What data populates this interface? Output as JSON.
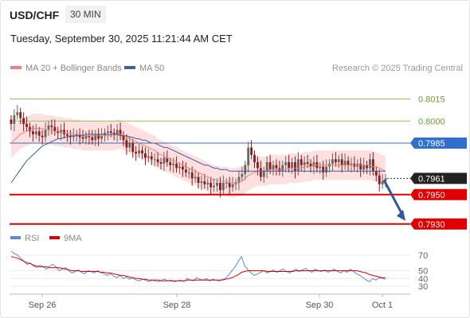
{
  "header": {
    "symbol": "USD/CHF",
    "timeframe": "30 MIN",
    "datetime": "Tuesday, September 30, 2025 11:21:44 AM CET"
  },
  "legend": {
    "ma20_label": "MA 20 + Bollinger Bands",
    "ma50_label": "MA 50",
    "credit": "Research © 2025 Trading Central",
    "rsi_label": "RSI",
    "ma9_label": "9MA"
  },
  "colors": {
    "ma20": "#f08080",
    "ma50": "#3f5f9f",
    "bollinger_fill": "#fde0df",
    "candle_up": "#666666",
    "candle_down": "#8b1a1a",
    "support": "#e00000",
    "resistance_green": "#8fc45a",
    "pivot_blue": "#2f6fd0",
    "current": "#222222",
    "arrow": "#2f5a96",
    "rsi": "#5b8bd6",
    "rsi_ma": "#e00000"
  },
  "chart_data": [
    {
      "type": "candlestick",
      "title": "USD/CHF",
      "timeframe": "30 MIN",
      "x_ticks": [
        "Sep 26",
        "Sep 28",
        "Sep 30",
        "Oct 1"
      ],
      "ylim": [
        0.7925,
        0.8025
      ],
      "price_levels": [
        {
          "value": 0.8015,
          "label": "0.8015",
          "style": "resistance"
        },
        {
          "value": 0.8,
          "label": "0.8000",
          "style": "resistance"
        },
        {
          "value": 0.7985,
          "label": "0.7985",
          "style": "pivot"
        },
        {
          "value": 0.7961,
          "label": "0.7961",
          "style": "current"
        },
        {
          "value": 0.795,
          "label": "0.7950",
          "style": "support"
        },
        {
          "value": 0.793,
          "label": "0.7930",
          "style": "support"
        }
      ],
      "close": [
        0.7998,
        0.8004,
        0.8006,
        0.8002,
        0.7998,
        0.7996,
        0.7993,
        0.7991,
        0.7993,
        0.799,
        0.7989,
        0.7994,
        0.7997,
        0.7996,
        0.7993,
        0.7992,
        0.7994,
        0.7991,
        0.799,
        0.7989,
        0.799,
        0.7991,
        0.7989,
        0.7988,
        0.799,
        0.7989,
        0.7987,
        0.7991,
        0.7988,
        0.799,
        0.7992,
        0.7993,
        0.7992,
        0.7991,
        0.7994,
        0.799,
        0.7987,
        0.7982,
        0.7985,
        0.7979,
        0.7978,
        0.798,
        0.7978,
        0.7975,
        0.7976,
        0.7974,
        0.7974,
        0.7972,
        0.7971,
        0.7975,
        0.7972,
        0.797,
        0.7971,
        0.7968,
        0.7969,
        0.7967,
        0.7965,
        0.7965,
        0.7961,
        0.7962,
        0.7958,
        0.7959,
        0.7957,
        0.7958,
        0.7955,
        0.7956,
        0.7958,
        0.7953,
        0.7958,
        0.7958,
        0.7955,
        0.7957,
        0.7958,
        0.7962,
        0.7964,
        0.797,
        0.7982,
        0.7977,
        0.7972,
        0.7968,
        0.7962,
        0.7966,
        0.7972,
        0.7967,
        0.797,
        0.7968,
        0.7966,
        0.797,
        0.7972,
        0.7968,
        0.7972,
        0.7966,
        0.7974,
        0.797,
        0.7972,
        0.7971,
        0.7969,
        0.7972,
        0.7968,
        0.7969,
        0.7965,
        0.7969,
        0.7971,
        0.7974,
        0.7972,
        0.7974,
        0.797,
        0.7973,
        0.797,
        0.7971,
        0.7969,
        0.7971,
        0.7967,
        0.797,
        0.7968,
        0.7974,
        0.7966,
        0.7963,
        0.7957,
        0.7959,
        0.7961
      ],
      "series": [
        {
          "name": "MA 20 + Bollinger Bands",
          "values": [
            0.7985,
            0.7987,
            0.7989,
            0.7991,
            0.7992,
            0.7993,
            0.7994,
            0.7995,
            0.7995,
            0.7995,
            0.7995,
            0.7994,
            0.7994,
            0.7994,
            0.7993,
            0.7993,
            0.7993,
            0.7992,
            0.7992,
            0.7992,
            0.7991,
            0.7991,
            0.7991,
            0.799,
            0.799,
            0.799,
            0.799,
            0.799,
            0.799,
            0.799,
            0.799,
            0.799,
            0.799,
            0.799,
            0.7991,
            0.7991,
            0.799,
            0.7989,
            0.7988,
            0.7987,
            0.7986,
            0.7985,
            0.7984,
            0.7983,
            0.7982,
            0.7981,
            0.798,
            0.7978,
            0.7977,
            0.7976,
            0.7975,
            0.7974,
            0.7973,
            0.7972,
            0.7971,
            0.797,
            0.7969,
            0.7968,
            0.7967,
            0.7966,
            0.7965,
            0.7964,
            0.7963,
            0.7962,
            0.7961,
            0.796,
            0.796,
            0.7959,
            0.7959,
            0.7959,
            0.7958,
            0.7958,
            0.7958,
            0.7959,
            0.7959,
            0.7961,
            0.7963,
            0.7964,
            0.7965,
            0.7966,
            0.7966,
            0.7966,
            0.7966,
            0.7967,
            0.7967,
            0.7967,
            0.7967,
            0.7967,
            0.7967,
            0.7968,
            0.7968,
            0.7968,
            0.7968,
            0.7968,
            0.7969,
            0.7969,
            0.7969,
            0.797,
            0.797,
            0.797,
            0.797,
            0.797,
            0.797,
            0.797,
            0.797,
            0.797,
            0.797,
            0.797,
            0.797,
            0.797,
            0.797,
            0.797,
            0.797,
            0.797,
            0.797,
            0.797,
            0.7969,
            0.7969,
            0.7968,
            0.7967,
            0.7966
          ]
        },
        {
          "name": "MA 50",
          "values": [
            0.7958,
            0.7961,
            0.7964,
            0.7967,
            0.797,
            0.7973,
            0.7975,
            0.7977,
            0.7979,
            0.7981,
            0.7983,
            0.7984,
            0.7985,
            0.7986,
            0.7987,
            0.7988,
            0.7988,
            0.7989,
            0.7989,
            0.799,
            0.799,
            0.799,
            0.799,
            0.799,
            0.7991,
            0.7991,
            0.7991,
            0.7991,
            0.7991,
            0.7991,
            0.7991,
            0.7991,
            0.7991,
            0.7991,
            0.7991,
            0.799,
            0.799,
            0.799,
            0.7989,
            0.7989,
            0.7988,
            0.7988,
            0.7987,
            0.7987,
            0.7986,
            0.7985,
            0.7985,
            0.7984,
            0.7983,
            0.7982,
            0.7982,
            0.7981,
            0.798,
            0.7979,
            0.7978,
            0.7977,
            0.7976,
            0.7975,
            0.7974,
            0.7973,
            0.7972,
            0.7971,
            0.797,
            0.797,
            0.7969,
            0.7968,
            0.7968,
            0.7967,
            0.7967,
            0.7967,
            0.7966,
            0.7966,
            0.7966,
            0.7966,
            0.7966,
            0.7966,
            0.7966,
            0.7966,
            0.7966,
            0.7966,
            0.7966,
            0.7966,
            0.7966,
            0.7966,
            0.7966,
            0.7966,
            0.7966,
            0.7966,
            0.7966,
            0.7966,
            0.7966,
            0.7966,
            0.7966,
            0.7966,
            0.7966,
            0.7966,
            0.7966,
            0.7966,
            0.7966,
            0.7966,
            0.7966,
            0.7966,
            0.7966,
            0.7966,
            0.7966,
            0.7966,
            0.7966,
            0.7966,
            0.7966,
            0.7966,
            0.7966,
            0.7966,
            0.7966,
            0.7966,
            0.7966,
            0.7966,
            0.7966,
            0.7966,
            0.7966,
            0.7966,
            0.7966
          ]
        }
      ],
      "bollinger_halfwidth": 0.001,
      "forecast": {
        "from": 0.7961,
        "to": 0.793,
        "direction": "down"
      }
    },
    {
      "type": "line",
      "title": "RSI",
      "ylim": [
        20,
        80
      ],
      "y_ticks": [
        70,
        50,
        40,
        30
      ],
      "series": [
        {
          "name": "RSI",
          "values": [
            75,
            72,
            70,
            66,
            62,
            58,
            60,
            56,
            54,
            57,
            55,
            52,
            56,
            58,
            55,
            50,
            52,
            54,
            50,
            47,
            49,
            51,
            48,
            46,
            50,
            49,
            47,
            50,
            48,
            46,
            44,
            46,
            43,
            41,
            44,
            40,
            42,
            39,
            41,
            38,
            37,
            39,
            38,
            36,
            38,
            37,
            36,
            38,
            39,
            37,
            38,
            36,
            37,
            38,
            36,
            40,
            38,
            37,
            41,
            39,
            38,
            40,
            37,
            39,
            38,
            37,
            39,
            40,
            45,
            50,
            55,
            62,
            68,
            56,
            51,
            47,
            44,
            46,
            48,
            50,
            47,
            49,
            51,
            48,
            50,
            52,
            49,
            47,
            50,
            52,
            49,
            51,
            53,
            50,
            48,
            52,
            50,
            49,
            51,
            48,
            50,
            52,
            49,
            47,
            50,
            48,
            52,
            49,
            46,
            44,
            41,
            38,
            36,
            40,
            38,
            41,
            40,
            39
          ]
        },
        {
          "name": "9MA",
          "values": [
            68,
            67,
            66,
            64,
            62,
            60,
            59,
            57,
            56,
            55,
            55,
            55,
            54,
            54,
            54,
            54,
            53,
            52,
            51,
            50,
            50,
            50,
            49,
            49,
            49,
            49,
            49,
            49,
            48,
            48,
            47,
            47,
            46,
            45,
            44,
            44,
            43,
            42,
            41,
            40,
            40,
            39,
            39,
            38,
            38,
            38,
            38,
            37,
            37,
            37,
            37,
            37,
            37,
            37,
            37,
            38,
            38,
            38,
            38,
            38,
            38,
            38,
            38,
            38,
            38,
            38,
            38,
            39,
            40,
            41,
            43,
            45,
            48,
            49,
            50,
            50,
            50,
            50,
            50,
            50,
            49,
            49,
            49,
            49,
            49,
            49,
            49,
            49,
            49,
            50,
            50,
            50,
            50,
            50,
            50,
            50,
            50,
            50,
            50,
            50,
            50,
            50,
            50,
            50,
            50,
            50,
            50,
            50,
            50,
            49,
            48,
            47,
            45,
            44,
            43,
            42,
            41,
            41
          ]
        }
      ]
    }
  ]
}
